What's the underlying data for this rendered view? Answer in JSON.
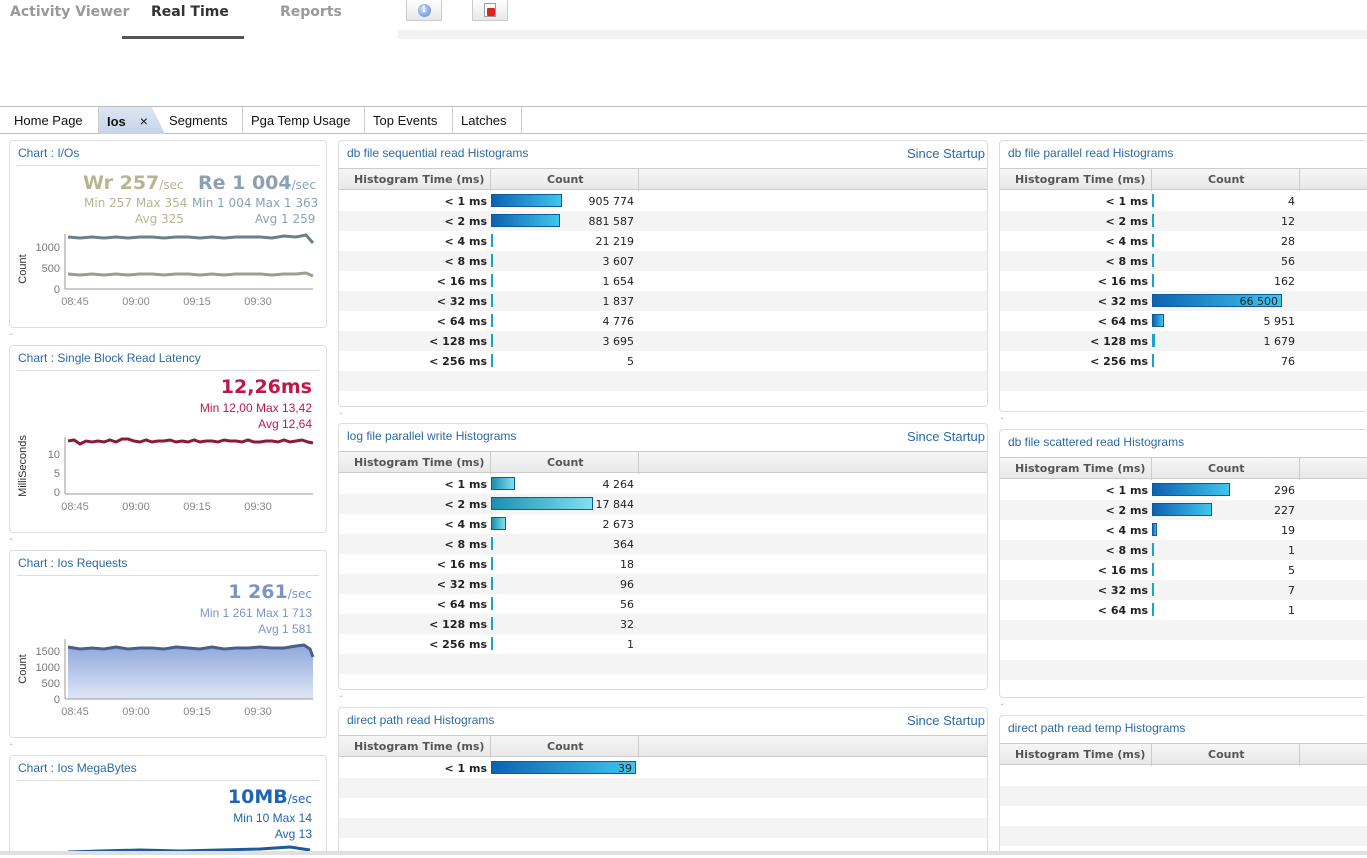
{
  "topnav": {
    "tabs": [
      "Activity Viewer",
      "Real Time",
      "Reports"
    ]
  },
  "icons": {
    "info": "info-icon",
    "close": "close-window-icon"
  },
  "tabs": [
    "Home Page",
    "Ios",
    "Segments",
    "Pga Temp Usage",
    "Top Events",
    "Latches"
  ],
  "tab_close": "×",
  "charts": {
    "ios": {
      "title": "Chart : I/Os",
      "wr_label": "Wr 257",
      "wr_unit": "/sec",
      "re_label": "Re 1 004",
      "re_unit": "/sec",
      "wr_minmax": "Min 257 Max 354",
      "re_minmax": "Min 1 004 Max 1 363",
      "wr_avg": "Avg 325",
      "re_avg": "Avg 1 259",
      "ylabel": "Count",
      "yticks": [
        "1000",
        "500",
        "0"
      ],
      "xticks": [
        "08:45",
        "09:00",
        "09:15",
        "09:30"
      ]
    },
    "latency": {
      "title": "Chart : Single Block Read Latency",
      "value": "12,26ms",
      "minmax": "Min 12,00 Max 13,42",
      "avg": "Avg 12,64",
      "ylabel": "MilliSeconds",
      "yticks": [
        "10",
        "5",
        "0"
      ],
      "xticks": [
        "08:45",
        "09:00",
        "09:15",
        "09:30"
      ]
    },
    "requests": {
      "title": "Chart : Ios Requests",
      "value": "1 261",
      "unit": "/sec",
      "minmax": "Min 1 261 Max 1 713",
      "avg": "Avg 1 581",
      "ylabel": "Count",
      "yticks": [
        "1500",
        "1000",
        "500",
        "0"
      ],
      "xticks": [
        "08:45",
        "09:00",
        "09:15",
        "09:30"
      ]
    },
    "megabytes": {
      "title": "Chart : Ios MegaBytes",
      "value": "10MB",
      "unit": "/sec",
      "minmax": "Min 10 Max 14",
      "avg": "Avg 13"
    }
  },
  "colors": {
    "accent": "#2a6aa7",
    "wr": "#b5b592",
    "re": "#8aa1b3",
    "latency": "#c0174a",
    "requests": "#7b93c6",
    "megabytes": "#1d64b4"
  },
  "histograms": {
    "seq": {
      "title": "db file sequential read Histograms",
      "sub": "Since Startup",
      "col1": "Histogram Time (ms)",
      "col2": "Count",
      "rows": [
        {
          "label": "< 1 ms",
          "count": "905 774",
          "value": 905774
        },
        {
          "label": "< 2 ms",
          "count": "881 587",
          "value": 881587
        },
        {
          "label": "< 4 ms",
          "count": "21 219",
          "value": 21219
        },
        {
          "label": "< 8 ms",
          "count": "3 607",
          "value": 3607
        },
        {
          "label": "< 16 ms",
          "count": "1 654",
          "value": 1654
        },
        {
          "label": "< 32 ms",
          "count": "1 837",
          "value": 1837
        },
        {
          "label": "< 64 ms",
          "count": "4 776",
          "value": 4776
        },
        {
          "label": "< 128 ms",
          "count": "3 695",
          "value": 3695
        },
        {
          "label": "< 256 ms",
          "count": "5",
          "value": 5
        }
      ]
    },
    "logw": {
      "title": "log file parallel write Histograms",
      "sub": "Since Startup",
      "col1": "Histogram Time (ms)",
      "col2": "Count",
      "rows": [
        {
          "label": "< 1 ms",
          "count": "4 264",
          "value": 4264
        },
        {
          "label": "< 2 ms",
          "count": "17 844",
          "value": 17844
        },
        {
          "label": "< 4 ms",
          "count": "2 673",
          "value": 2673
        },
        {
          "label": "< 8 ms",
          "count": "364",
          "value": 364
        },
        {
          "label": "< 16 ms",
          "count": "18",
          "value": 18
        },
        {
          "label": "< 32 ms",
          "count": "96",
          "value": 96
        },
        {
          "label": "< 64 ms",
          "count": "56",
          "value": 56
        },
        {
          "label": "< 128 ms",
          "count": "32",
          "value": 32
        },
        {
          "label": "< 256 ms",
          "count": "1",
          "value": 1
        }
      ]
    },
    "direct": {
      "title": "direct path read Histograms",
      "sub": "Since Startup",
      "col1": "Histogram Time (ms)",
      "col2": "Count",
      "rows": [
        {
          "label": "< 1 ms",
          "count": "39",
          "value": 39
        }
      ]
    },
    "par": {
      "title": "db file parallel read Histograms",
      "col1": "Histogram Time (ms)",
      "col2": "Count",
      "rows": [
        {
          "label": "< 1 ms",
          "count": "4",
          "value": 4
        },
        {
          "label": "< 2 ms",
          "count": "12",
          "value": 12
        },
        {
          "label": "< 4 ms",
          "count": "28",
          "value": 28
        },
        {
          "label": "< 8 ms",
          "count": "56",
          "value": 56
        },
        {
          "label": "< 16 ms",
          "count": "162",
          "value": 162
        },
        {
          "label": "< 32 ms",
          "count": "66 500",
          "value": 66500
        },
        {
          "label": "< 64 ms",
          "count": "5 951",
          "value": 5951
        },
        {
          "label": "< 128 ms",
          "count": "1 679",
          "value": 1679
        },
        {
          "label": "< 256 ms",
          "count": "76",
          "value": 76
        }
      ]
    },
    "scat": {
      "title": "db file scattered read Histograms",
      "col1": "Histogram Time (ms)",
      "col2": "Count",
      "rows": [
        {
          "label": "< 1 ms",
          "count": "296",
          "value": 296
        },
        {
          "label": "< 2 ms",
          "count": "227",
          "value": 227
        },
        {
          "label": "< 4 ms",
          "count": "19",
          "value": 19
        },
        {
          "label": "< 8 ms",
          "count": "1",
          "value": 1
        },
        {
          "label": "< 16 ms",
          "count": "5",
          "value": 5
        },
        {
          "label": "< 32 ms",
          "count": "7",
          "value": 7
        },
        {
          "label": "< 64 ms",
          "count": "1",
          "value": 1
        }
      ]
    },
    "temp": {
      "title": "direct path read temp Histograms",
      "col1": "Histogram Time (ms)",
      "col2": "Count",
      "rows": []
    }
  }
}
